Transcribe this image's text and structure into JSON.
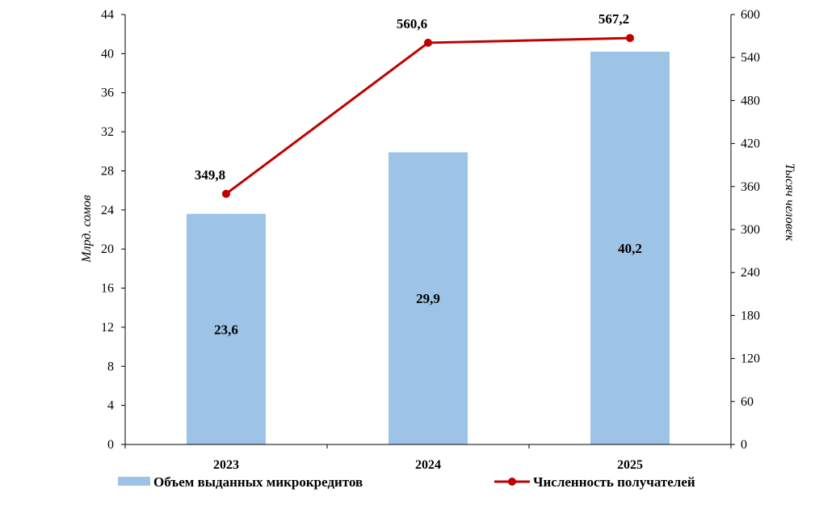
{
  "chart_data": {
    "type": "bar+line",
    "categories": [
      "2023",
      "2024",
      "2025"
    ],
    "series": [
      {
        "name": "Объем выданных микрокредитов",
        "type": "bar",
        "axis": "left",
        "values": [
          23.6,
          29.9,
          40.2
        ],
        "labels": [
          "23,6",
          "29,9",
          "40,2"
        ],
        "color": "#9dc3e6"
      },
      {
        "name": "Численность получателей",
        "type": "line",
        "axis": "right",
        "values": [
          349.8,
          560.6,
          567.2
        ],
        "labels": [
          "349,8",
          "560,6",
          "567,2"
        ],
        "color": "#c00000"
      }
    ],
    "ylabel": "Млрд. сомов",
    "y2label": "Тысяч человек",
    "ylim": [
      0,
      44
    ],
    "yticks": [
      "0",
      "4",
      "8",
      "12",
      "16",
      "20",
      "24",
      "28",
      "32",
      "36",
      "40",
      "44"
    ],
    "y2lim": [
      0,
      600
    ],
    "y2ticks": [
      "0",
      "60",
      "120",
      "180",
      "240",
      "300",
      "360",
      "420",
      "480",
      "540",
      "600"
    ],
    "grid": false,
    "legend_position": "bottom"
  }
}
